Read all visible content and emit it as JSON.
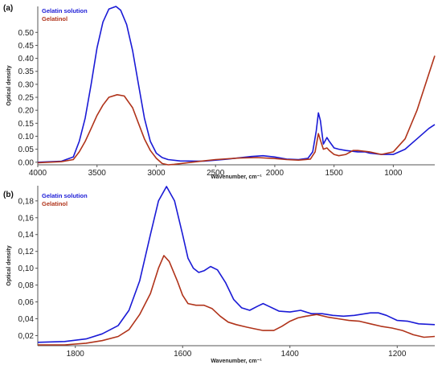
{
  "colors": {
    "gelatin_solution": "#1a1ad6",
    "gelatinol": "#b0331a"
  },
  "chart_data": [
    {
      "panel": "(a)",
      "type": "line",
      "xlabel": "Wavenumber, cm⁻¹",
      "ylabel": "Optical density",
      "xlim": [
        4000,
        650
      ],
      "ylim": [
        -0.01,
        0.6
      ],
      "x_reversed": true,
      "grid": false,
      "legend_position": "top-left",
      "x_ticks": [
        4000,
        3500,
        3000,
        2500,
        2000,
        1500,
        1000
      ],
      "y_ticks": [
        0.0,
        0.05,
        0.1,
        0.15,
        0.2,
        0.25,
        0.3,
        0.35,
        0.4,
        0.45,
        0.5
      ],
      "x_tick_labels": [
        "4000",
        "3500",
        "3000",
        "2500",
        "2000",
        "1500",
        "1000"
      ],
      "y_tick_labels": [
        "0.00",
        "0.05",
        "0.10",
        "0.15",
        "0.20",
        "0.25",
        "0.30",
        "0.35",
        "0.40",
        "0.45",
        "0.50"
      ],
      "series": [
        {
          "name": "Gelatin solution",
          "color": "#1a1ad6",
          "points": [
            [
              4000,
              0.0
            ],
            [
              3800,
              0.004
            ],
            [
              3700,
              0.02
            ],
            [
              3650,
              0.08
            ],
            [
              3600,
              0.17
            ],
            [
              3550,
              0.3
            ],
            [
              3500,
              0.44
            ],
            [
              3450,
              0.54
            ],
            [
              3400,
              0.59
            ],
            [
              3340,
              0.6
            ],
            [
              3300,
              0.585
            ],
            [
              3250,
              0.53
            ],
            [
              3200,
              0.43
            ],
            [
              3150,
              0.3
            ],
            [
              3100,
              0.17
            ],
            [
              3050,
              0.08
            ],
            [
              3000,
              0.035
            ],
            [
              2950,
              0.018
            ],
            [
              2900,
              0.01
            ],
            [
              2800,
              0.005
            ],
            [
              2600,
              0.004
            ],
            [
              2400,
              0.012
            ],
            [
              2200,
              0.022
            ],
            [
              2100,
              0.025
            ],
            [
              2000,
              0.02
            ],
            [
              1900,
              0.012
            ],
            [
              1800,
              0.01
            ],
            [
              1720,
              0.015
            ],
            [
              1680,
              0.04
            ],
            [
              1650,
              0.12
            ],
            [
              1632,
              0.19
            ],
            [
              1615,
              0.16
            ],
            [
              1590,
              0.07
            ],
            [
              1560,
              0.095
            ],
            [
              1540,
              0.08
            ],
            [
              1500,
              0.055
            ],
            [
              1460,
              0.05
            ],
            [
              1400,
              0.045
            ],
            [
              1300,
              0.04
            ],
            [
              1240,
              0.04
            ],
            [
              1200,
              0.035
            ],
            [
              1100,
              0.03
            ],
            [
              1000,
              0.03
            ],
            [
              900,
              0.05
            ],
            [
              800,
              0.09
            ],
            [
              700,
              0.13
            ],
            [
              650,
              0.145
            ]
          ]
        },
        {
          "name": "Gelatinol",
          "color": "#b0331a",
          "points": [
            [
              4000,
              -0.002
            ],
            [
              3800,
              0.002
            ],
            [
              3700,
              0.01
            ],
            [
              3650,
              0.04
            ],
            [
              3600,
              0.08
            ],
            [
              3550,
              0.13
            ],
            [
              3500,
              0.18
            ],
            [
              3450,
              0.22
            ],
            [
              3400,
              0.25
            ],
            [
              3330,
              0.26
            ],
            [
              3270,
              0.255
            ],
            [
              3200,
              0.21
            ],
            [
              3150,
              0.15
            ],
            [
              3100,
              0.09
            ],
            [
              3050,
              0.045
            ],
            [
              3000,
              0.015
            ],
            [
              2950,
              -0.005
            ],
            [
              2900,
              -0.01
            ],
            [
              2850,
              -0.008
            ],
            [
              2700,
              0.0
            ],
            [
              2500,
              0.01
            ],
            [
              2300,
              0.016
            ],
            [
              2150,
              0.018
            ],
            [
              2000,
              0.014
            ],
            [
              1900,
              0.01
            ],
            [
              1800,
              0.008
            ],
            [
              1700,
              0.012
            ],
            [
              1660,
              0.04
            ],
            [
              1640,
              0.09
            ],
            [
              1632,
              0.11
            ],
            [
              1615,
              0.085
            ],
            [
              1590,
              0.05
            ],
            [
              1560,
              0.055
            ],
            [
              1540,
              0.045
            ],
            [
              1500,
              0.03
            ],
            [
              1460,
              0.025
            ],
            [
              1400,
              0.03
            ],
            [
              1340,
              0.045
            ],
            [
              1300,
              0.045
            ],
            [
              1200,
              0.04
            ],
            [
              1100,
              0.03
            ],
            [
              1000,
              0.04
            ],
            [
              900,
              0.09
            ],
            [
              800,
              0.2
            ],
            [
              700,
              0.34
            ],
            [
              650,
              0.41
            ]
          ]
        }
      ]
    },
    {
      "panel": "(b)",
      "type": "line",
      "xlabel": "Wavenumber, cm⁻¹",
      "ylabel": "Optical density",
      "xlim": [
        1870,
        1130
      ],
      "ylim": [
        0.008,
        0.198
      ],
      "x_reversed": true,
      "grid": false,
      "legend_position": "top-left",
      "x_ticks": [
        1800,
        1600,
        1400,
        1200
      ],
      "y_ticks": [
        0.02,
        0.04,
        0.06,
        0.08,
        0.1,
        0.12,
        0.14,
        0.16,
        0.18
      ],
      "x_tick_labels": [
        "1800",
        "1600",
        "1400",
        "1200"
      ],
      "y_tick_labels": [
        "0,02",
        "0,04",
        "0,06",
        "0,08",
        "0,10",
        "0,12",
        "0,14",
        "0,16",
        "0,18"
      ],
      "series": [
        {
          "name": "Gelatin solution",
          "color": "#1a1ad6",
          "points": [
            [
              1870,
              0.012
            ],
            [
              1820,
              0.013
            ],
            [
              1780,
              0.016
            ],
            [
              1750,
              0.022
            ],
            [
              1720,
              0.032
            ],
            [
              1700,
              0.05
            ],
            [
              1680,
              0.085
            ],
            [
              1660,
              0.14
            ],
            [
              1645,
              0.18
            ],
            [
              1630,
              0.197
            ],
            [
              1615,
              0.18
            ],
            [
              1600,
              0.14
            ],
            [
              1590,
              0.112
            ],
            [
              1580,
              0.1
            ],
            [
              1570,
              0.095
            ],
            [
              1560,
              0.097
            ],
            [
              1548,
              0.102
            ],
            [
              1535,
              0.098
            ],
            [
              1520,
              0.083
            ],
            [
              1505,
              0.063
            ],
            [
              1490,
              0.053
            ],
            [
              1475,
              0.05
            ],
            [
              1460,
              0.055
            ],
            [
              1450,
              0.058
            ],
            [
              1440,
              0.055
            ],
            [
              1420,
              0.049
            ],
            [
              1400,
              0.048
            ],
            [
              1380,
              0.05
            ],
            [
              1360,
              0.046
            ],
            [
              1340,
              0.046
            ],
            [
              1320,
              0.044
            ],
            [
              1300,
              0.043
            ],
            [
              1280,
              0.044
            ],
            [
              1250,
              0.047
            ],
            [
              1235,
              0.047
            ],
            [
              1220,
              0.044
            ],
            [
              1200,
              0.038
            ],
            [
              1180,
              0.037
            ],
            [
              1160,
              0.034
            ],
            [
              1130,
              0.033
            ]
          ]
        },
        {
          "name": "Gelatinol",
          "color": "#b0331a",
          "points": [
            [
              1870,
              0.009
            ],
            [
              1820,
              0.009
            ],
            [
              1780,
              0.011
            ],
            [
              1750,
              0.014
            ],
            [
              1720,
              0.019
            ],
            [
              1700,
              0.027
            ],
            [
              1680,
              0.045
            ],
            [
              1660,
              0.07
            ],
            [
              1645,
              0.1
            ],
            [
              1635,
              0.115
            ],
            [
              1625,
              0.108
            ],
            [
              1610,
              0.085
            ],
            [
              1600,
              0.068
            ],
            [
              1590,
              0.058
            ],
            [
              1575,
              0.056
            ],
            [
              1560,
              0.056
            ],
            [
              1545,
              0.052
            ],
            [
              1530,
              0.043
            ],
            [
              1515,
              0.036
            ],
            [
              1500,
              0.033
            ],
            [
              1480,
              0.03
            ],
            [
              1465,
              0.028
            ],
            [
              1450,
              0.026
            ],
            [
              1430,
              0.026
            ],
            [
              1415,
              0.031
            ],
            [
              1400,
              0.037
            ],
            [
              1385,
              0.041
            ],
            [
              1370,
              0.043
            ],
            [
              1350,
              0.045
            ],
            [
              1330,
              0.042
            ],
            [
              1310,
              0.04
            ],
            [
              1290,
              0.038
            ],
            [
              1270,
              0.037
            ],
            [
              1250,
              0.034
            ],
            [
              1230,
              0.031
            ],
            [
              1210,
              0.029
            ],
            [
              1190,
              0.026
            ],
            [
              1170,
              0.021
            ],
            [
              1150,
              0.018
            ],
            [
              1130,
              0.019
            ]
          ]
        }
      ]
    }
  ]
}
